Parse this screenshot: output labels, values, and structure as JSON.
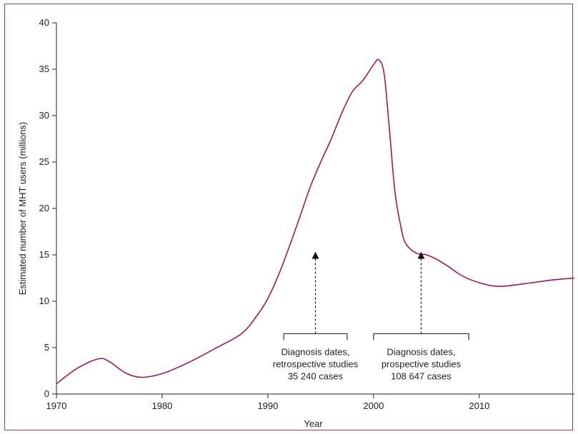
{
  "chart_data": {
    "type": "line",
    "title": "",
    "xlabel": "Year",
    "ylabel": "Estimated number of MHT users (millions)",
    "xlim": [
      1970,
      2019
    ],
    "ylim": [
      0,
      40
    ],
    "x_ticks": [
      1970,
      1980,
      1990,
      2000,
      2010
    ],
    "y_ticks": [
      0,
      5,
      10,
      15,
      20,
      25,
      30,
      35,
      40
    ],
    "grid": false,
    "line_color": "#a0195a",
    "series": [
      {
        "x": [
          1970,
          1972,
          1974,
          1975,
          1976.5,
          1978,
          1980,
          1982.5,
          1985,
          1987.5,
          1989,
          1990,
          1991,
          1992,
          1993,
          1994,
          1995,
          1996,
          1997,
          1998,
          1999,
          2000,
          2000.5,
          2001,
          2001.5,
          2002,
          2002.5,
          2003,
          2004,
          2005,
          2006,
          2007,
          2008,
          2009,
          2010,
          2011,
          2012,
          2013,
          2015,
          2017,
          2019
        ],
        "y": [
          1.1,
          2.8,
          3.8,
          3.5,
          2.3,
          1.8,
          2.2,
          3.4,
          4.9,
          6.5,
          8.5,
          10.3,
          12.8,
          15.8,
          19.0,
          22.3,
          25.0,
          27.5,
          30.3,
          32.6,
          33.8,
          35.5,
          36.0,
          34.5,
          28.5,
          22.0,
          18.5,
          16.3,
          15.2,
          15.0,
          14.5,
          13.8,
          13.0,
          12.4,
          12.0,
          11.7,
          11.6,
          11.7,
          12.0,
          12.3,
          12.5
        ]
      }
    ],
    "annotations": [
      {
        "lines": [
          "Diagnosis dates,",
          "retrospective studies",
          "35 240 cases"
        ],
        "x_start": 1991.5,
        "x_end": 1997.5,
        "arrow_x": 1994.5,
        "bracket_y": 6.5,
        "arrow_tip_y": 14.8
      },
      {
        "lines": [
          "Diagnosis dates,",
          "prospective studies",
          "108 647 cases"
        ],
        "x_start": 2000,
        "x_end": 2009,
        "arrow_x": 2004.5,
        "bracket_y": 6.5,
        "arrow_tip_y": 14.8
      }
    ]
  }
}
